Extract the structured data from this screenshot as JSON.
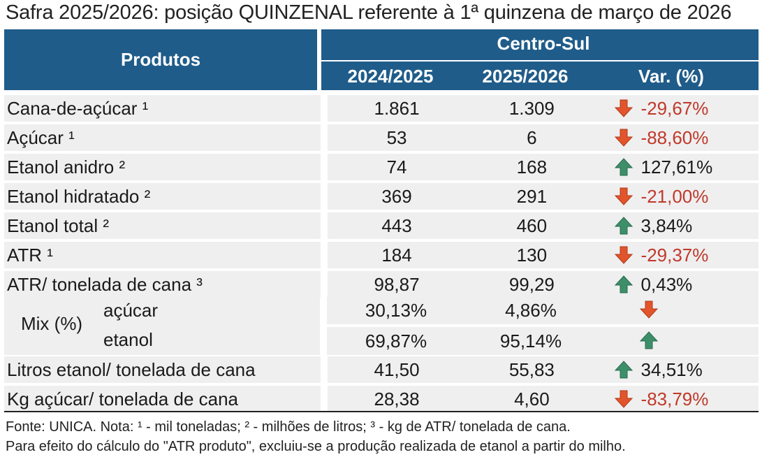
{
  "title": "Safra 2025/2026: posição QUINZENAL referente à 1ª quinzena de março de 2026",
  "header": {
    "products": "Produtos",
    "region": "Centro-Sul",
    "col1": "2024/2025",
    "col2": "2025/2026",
    "col3": "Var. (%)"
  },
  "rows": [
    {
      "name": "Cana-de-açúcar ¹",
      "v1": "1.861",
      "v2": "1.309",
      "dir": "down",
      "var": "-29,67%"
    },
    {
      "name": "Açúcar ¹",
      "v1": "53",
      "v2": "6",
      "dir": "down",
      "var": "-88,60%"
    },
    {
      "name": "Etanol anidro ²",
      "v1": "74",
      "v2": "168",
      "dir": "up",
      "var": "127,61%"
    },
    {
      "name": "Etanol hidratado ²",
      "v1": "369",
      "v2": "291",
      "dir": "down",
      "var": "-21,00%"
    },
    {
      "name": "Etanol total ²",
      "v1": "443",
      "v2": "460",
      "dir": "up",
      "var": "3,84%"
    },
    {
      "name": "ATR ¹",
      "v1": "184",
      "v2": "130",
      "dir": "down",
      "var": "-29,37%"
    },
    {
      "name": "ATR/ tonelada de cana ³",
      "v1": "98,87",
      "v2": "99,29",
      "dir": "up",
      "var": "0,43%"
    }
  ],
  "mix": {
    "label": "Mix (%)",
    "rows": [
      {
        "sub": "açúcar",
        "v1": "30,13%",
        "v2": "4,86%",
        "dir": "down"
      },
      {
        "sub": "etanol",
        "v1": "69,87%",
        "v2": "95,14%",
        "dir": "up"
      }
    ]
  },
  "rows2": [
    {
      "name": "Litros etanol/ tonelada de cana",
      "v1": "41,50",
      "v2": "55,83",
      "dir": "up",
      "var": "34,51%"
    },
    {
      "name": "Kg açúcar/ tonelada de cana",
      "v1": "28,38",
      "v2": "4,60",
      "dir": "down",
      "var": "-83,79%"
    }
  ],
  "footer": {
    "line1": "Fonte: UNICA. Nota: ¹ - mil toneladas; ² - milhões de litros; ³ - kg de ATR/ tonelada de cana.",
    "line2": "Para efeito do cálculo do \"ATR produto\", excluiu-se a produção realizada de etanol a partir do milho."
  },
  "colors": {
    "header_bg": "#1f5c8a",
    "row_bg": "#efefef",
    "negative_text": "#c0392b",
    "arrow_down": "#e2542b",
    "arrow_up": "#3d8f6a"
  }
}
